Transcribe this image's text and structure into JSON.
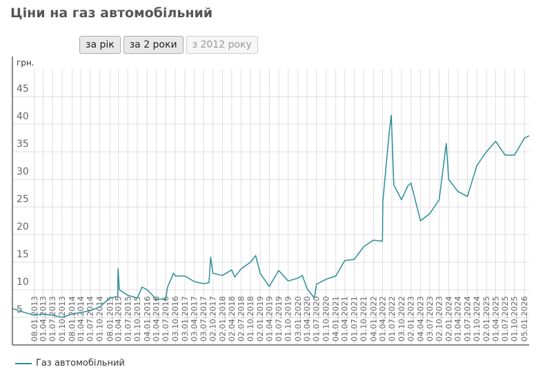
{
  "title": "Ціни на газ автомобільний",
  "buttons": [
    {
      "label": "за рік",
      "active": false
    },
    {
      "label": "за 2 роки",
      "active": false
    },
    {
      "label": "з 2012 року",
      "active": true
    }
  ],
  "chart_data": {
    "type": "line",
    "ylabel": "грн.",
    "ylim": [
      0,
      50
    ],
    "yticks": [
      5,
      10,
      15,
      20,
      25,
      30,
      35,
      40,
      45
    ],
    "xlim": [
      "2012-06-08",
      "2026-02-20"
    ],
    "grid": true,
    "legend": "bottom-left",
    "line_color": "#2a8b9a",
    "xtick_labels": [
      "08.01.2013",
      "01.04.2013",
      "01.07.2013",
      "01.10.2013",
      "08.01.2014",
      "01.04.2014",
      "01.07.2014",
      "01.10.2014",
      "08.01.2015",
      "01.04.2015",
      "01.07.2015",
      "01.10.2015",
      "04.01.2016",
      "01.04.2016",
      "01.07.2016",
      "03.10.2016",
      "03.01.2017",
      "03.04.2017",
      "03.07.2017",
      "02.10.2017",
      "02.01.2018",
      "02.04.2018",
      "02.07.2018",
      "01.10.2018",
      "02.01.2019",
      "01.04.2019",
      "01.07.2019",
      "01.10.2019",
      "03.01.2020",
      "01.04.2020",
      "01.07.2020",
      "01.10.2020",
      "04.01.2021",
      "01.04.2021",
      "01.07.2021",
      "01.10.2021",
      "04.01.2022",
      "01.04.2022",
      "01.07.2022",
      "03.10.2022",
      "02.01.2023",
      "04.04.2023",
      "03.07.2023",
      "02.10.2023",
      "02.01.2024",
      "01.04.2024",
      "01.07.2024",
      "01.10.2024",
      "02.01.2025",
      "01.04.2025",
      "01.07.2025",
      "01.10.2025",
      "05.01.2026"
    ],
    "series": [
      {
        "name": "Газ автомобільний",
        "points": [
          [
            "2012-06-08",
            6.6
          ],
          [
            "2012-10-01",
            5.9
          ],
          [
            "2013-01-08",
            5.4
          ],
          [
            "2013-04-01",
            5.6
          ],
          [
            "2013-07-01",
            5.4
          ],
          [
            "2013-10-01",
            5.0
          ],
          [
            "2014-01-08",
            5.6
          ],
          [
            "2014-04-01",
            5.9
          ],
          [
            "2014-07-01",
            6.2
          ],
          [
            "2014-10-01",
            6.9
          ],
          [
            "2015-01-08",
            8.5
          ],
          [
            "2015-03-25",
            8.8
          ],
          [
            "2015-03-28",
            13.8
          ],
          [
            "2015-04-10",
            10.0
          ],
          [
            "2015-07-01",
            9.0
          ],
          [
            "2015-10-01",
            8.5
          ],
          [
            "2015-11-15",
            10.5
          ],
          [
            "2016-01-04",
            10.0
          ],
          [
            "2016-04-01",
            8.3
          ],
          [
            "2016-07-01",
            8.3
          ],
          [
            "2016-07-20",
            10.5
          ],
          [
            "2016-09-15",
            13.0
          ],
          [
            "2016-10-03",
            12.5
          ],
          [
            "2017-01-03",
            12.5
          ],
          [
            "2017-04-03",
            11.5
          ],
          [
            "2017-07-03",
            11.1
          ],
          [
            "2017-08-25",
            11.3
          ],
          [
            "2017-09-10",
            15.9
          ],
          [
            "2017-10-02",
            13.0
          ],
          [
            "2018-01-02",
            12.6
          ],
          [
            "2018-04-02",
            13.6
          ],
          [
            "2018-05-01",
            12.3
          ],
          [
            "2018-07-02",
            13.8
          ],
          [
            "2018-10-01",
            15.0
          ],
          [
            "2018-11-20",
            16.2
          ],
          [
            "2019-01-02",
            13.0
          ],
          [
            "2019-04-01",
            10.6
          ],
          [
            "2019-07-01",
            13.5
          ],
          [
            "2019-10-01",
            11.6
          ],
          [
            "2020-01-03",
            12.1
          ],
          [
            "2020-02-15",
            12.6
          ],
          [
            "2020-04-01",
            10.2
          ],
          [
            "2020-06-10",
            8.5
          ],
          [
            "2020-07-01",
            11.0
          ],
          [
            "2020-10-01",
            11.9
          ],
          [
            "2021-01-04",
            12.5
          ],
          [
            "2021-04-01",
            15.3
          ],
          [
            "2021-07-01",
            15.5
          ],
          [
            "2021-10-01",
            17.8
          ],
          [
            "2022-01-04",
            19.0
          ],
          [
            "2022-04-01",
            18.8
          ],
          [
            "2022-04-05",
            26.0
          ],
          [
            "2022-06-05",
            38.5
          ],
          [
            "2022-06-25",
            41.6
          ],
          [
            "2022-07-20",
            29.0
          ],
          [
            "2022-10-03",
            26.3
          ],
          [
            "2022-12-01",
            28.8
          ],
          [
            "2023-01-02",
            29.3
          ],
          [
            "2023-04-04",
            22.5
          ],
          [
            "2023-07-03",
            23.8
          ],
          [
            "2023-10-02",
            26.3
          ],
          [
            "2023-12-10",
            36.5
          ],
          [
            "2024-01-02",
            30.0
          ],
          [
            "2024-04-01",
            27.8
          ],
          [
            "2024-07-01",
            26.9
          ],
          [
            "2024-10-01",
            32.5
          ],
          [
            "2025-01-02",
            35.0
          ],
          [
            "2025-04-01",
            36.9
          ],
          [
            "2025-07-01",
            34.4
          ],
          [
            "2025-10-01",
            34.4
          ],
          [
            "2026-01-05",
            37.5
          ],
          [
            "2026-02-20",
            37.9
          ]
        ]
      }
    ]
  }
}
